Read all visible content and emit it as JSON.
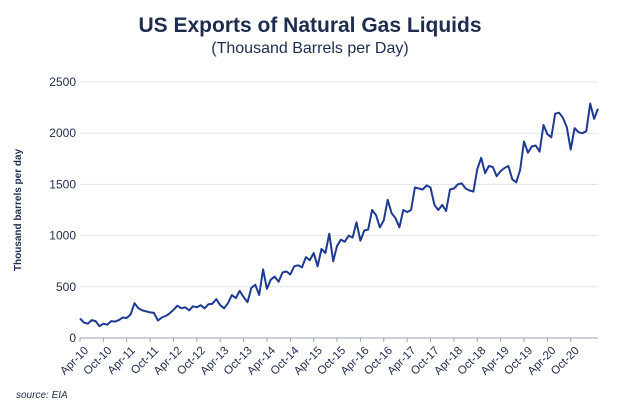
{
  "page": {
    "title": "US Exports of Natural Gas Liquids",
    "subtitle": "(Thousand Barrels per Day)",
    "source": "source: EIA"
  },
  "colors": {
    "line": "#1f3a93",
    "grid": "#dfe3ea",
    "axis": "#1e2c4e",
    "background": "#ffffff"
  },
  "chart_data": {
    "type": "line",
    "title": "US Exports of Natural Gas Liquids",
    "subtitle": "(Thousand Barrels per Day)",
    "xlabel": "",
    "ylabel": "Thousand barrels per day",
    "ylim": [
      0,
      2500
    ],
    "yticks": [
      0,
      500,
      1000,
      1500,
      2000,
      2500
    ],
    "grid": "horizontal",
    "legend": "none",
    "x_start": "Apr-10",
    "x_tick_labels": [
      "Apr-10",
      "Oct-10",
      "Apr-11",
      "Oct-11",
      "Apr-12",
      "Oct-12",
      "Apr-13",
      "Oct-13",
      "Apr-14",
      "Oct-14",
      "Apr-15",
      "Oct-15",
      "Apr-16",
      "Oct-16",
      "Apr-17",
      "Oct-17",
      "Apr-18",
      "Oct-18",
      "Apr-19",
      "Oct-19",
      "Apr-20",
      "Oct-20"
    ],
    "series": [
      {
        "values": [
          190,
          150,
          140,
          175,
          165,
          115,
          140,
          130,
          165,
          160,
          175,
          200,
          195,
          230,
          340,
          290,
          270,
          260,
          250,
          245,
          170,
          200,
          215,
          240,
          275,
          315,
          290,
          300,
          270,
          310,
          300,
          320,
          290,
          330,
          335,
          380,
          320,
          290,
          340,
          420,
          390,
          460,
          400,
          350,
          490,
          520,
          420,
          670,
          480,
          570,
          600,
          550,
          640,
          650,
          620,
          700,
          710,
          690,
          790,
          760,
          830,
          700,
          870,
          830,
          1020,
          750,
          900,
          960,
          940,
          1000,
          980,
          1130,
          950,
          1050,
          1060,
          1250,
          1200,
          1080,
          1150,
          1350,
          1220,
          1170,
          1080,
          1250,
          1230,
          1250,
          1470,
          1460,
          1450,
          1490,
          1470,
          1300,
          1250,
          1300,
          1240,
          1450,
          1460,
          1500,
          1510,
          1460,
          1440,
          1430,
          1650,
          1760,
          1610,
          1680,
          1670,
          1580,
          1630,
          1660,
          1680,
          1550,
          1520,
          1640,
          1920,
          1810,
          1870,
          1880,
          1820,
          2080,
          1990,
          1960,
          2190,
          2200,
          2150,
          2060,
          1840,
          2050,
          2010,
          2000,
          2020,
          2290,
          2140,
          2240
        ]
      }
    ]
  }
}
